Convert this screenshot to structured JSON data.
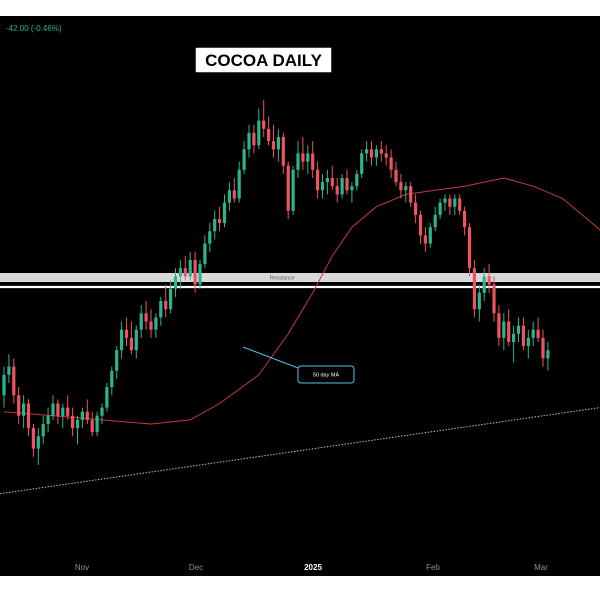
{
  "header": {
    "price_change": "-42.00 (-0.46%)"
  },
  "title": "COCOA DAILY",
  "annotations": {
    "resistance": "Resistance",
    "ma_label": "50 day MA"
  },
  "colors": {
    "up": "#2bb58a",
    "down": "#ef5360",
    "ma": "#c23a40",
    "resistance": "#d9d9d9",
    "trend": "#bfbfbf",
    "callout": "#56c3df",
    "background": "#000000"
  },
  "chart_data": {
    "type": "candlestick",
    "title": "COCOA DAILY",
    "x_ticks": [
      "Nov",
      "Dec",
      "2025",
      "Feb",
      "Mar"
    ],
    "y_axis": {
      "visible": false,
      "range": [
        0,
        100
      ],
      "units": "relative"
    },
    "grid": false,
    "moving_average": {
      "name": "50 day MA",
      "points": [
        [
          0,
          23
        ],
        [
          10,
          22
        ],
        [
          20,
          21
        ],
        [
          30,
          20
        ],
        [
          38,
          21
        ],
        [
          44,
          25
        ],
        [
          52,
          32
        ],
        [
          58,
          42
        ],
        [
          63,
          52
        ],
        [
          67,
          61
        ],
        [
          71,
          68
        ],
        [
          76,
          73
        ],
        [
          82,
          76
        ],
        [
          88,
          77
        ],
        [
          94,
          78
        ],
        [
          98,
          79
        ],
        [
          102,
          80
        ],
        [
          108,
          78
        ],
        [
          114,
          75
        ],
        [
          118,
          71
        ],
        [
          122,
          67
        ]
      ]
    },
    "resistance_level": 60,
    "trendline": {
      "start": [
        0,
        3
      ],
      "end": [
        122,
        24
      ]
    },
    "candles": [
      {
        "o": 27,
        "h": 34,
        "l": 24,
        "c": 32
      },
      {
        "o": 32,
        "h": 37,
        "l": 30,
        "c": 34
      },
      {
        "o": 34,
        "h": 36,
        "l": 25,
        "c": 27
      },
      {
        "o": 27,
        "h": 29,
        "l": 20,
        "c": 22
      },
      {
        "o": 22,
        "h": 27,
        "l": 19,
        "c": 25
      },
      {
        "o": 25,
        "h": 26,
        "l": 17,
        "c": 19
      },
      {
        "o": 19,
        "h": 20,
        "l": 12,
        "c": 14
      },
      {
        "o": 14,
        "h": 19,
        "l": 10,
        "c": 17
      },
      {
        "o": 17,
        "h": 22,
        "l": 15,
        "c": 20
      },
      {
        "o": 20,
        "h": 24,
        "l": 18,
        "c": 22
      },
      {
        "o": 22,
        "h": 27,
        "l": 21,
        "c": 25
      },
      {
        "o": 25,
        "h": 26,
        "l": 20,
        "c": 22
      },
      {
        "o": 22,
        "h": 25,
        "l": 19,
        "c": 24
      },
      {
        "o": 24,
        "h": 27,
        "l": 21,
        "c": 22
      },
      {
        "o": 22,
        "h": 24,
        "l": 17,
        "c": 19
      },
      {
        "o": 19,
        "h": 22,
        "l": 15,
        "c": 21
      },
      {
        "o": 21,
        "h": 24,
        "l": 19,
        "c": 23
      },
      {
        "o": 23,
        "h": 26,
        "l": 20,
        "c": 21
      },
      {
        "o": 21,
        "h": 23,
        "l": 17,
        "c": 18
      },
      {
        "o": 18,
        "h": 23,
        "l": 17,
        "c": 22
      },
      {
        "o": 22,
        "h": 25,
        "l": 20,
        "c": 24
      },
      {
        "o": 24,
        "h": 30,
        "l": 23,
        "c": 29
      },
      {
        "o": 29,
        "h": 34,
        "l": 27,
        "c": 33
      },
      {
        "o": 33,
        "h": 39,
        "l": 31,
        "c": 38
      },
      {
        "o": 38,
        "h": 45,
        "l": 36,
        "c": 43
      },
      {
        "o": 43,
        "h": 46,
        "l": 39,
        "c": 41
      },
      {
        "o": 41,
        "h": 45,
        "l": 37,
        "c": 38
      },
      {
        "o": 38,
        "h": 44,
        "l": 36,
        "c": 43
      },
      {
        "o": 43,
        "h": 49,
        "l": 41,
        "c": 47
      },
      {
        "o": 47,
        "h": 50,
        "l": 43,
        "c": 45
      },
      {
        "o": 45,
        "h": 48,
        "l": 41,
        "c": 43
      },
      {
        "o": 43,
        "h": 47,
        "l": 41,
        "c": 46
      },
      {
        "o": 46,
        "h": 51,
        "l": 44,
        "c": 50
      },
      {
        "o": 50,
        "h": 54,
        "l": 46,
        "c": 48
      },
      {
        "o": 48,
        "h": 55,
        "l": 47,
        "c": 53
      },
      {
        "o": 53,
        "h": 58,
        "l": 51,
        "c": 56
      },
      {
        "o": 56,
        "h": 60,
        "l": 53,
        "c": 58
      },
      {
        "o": 58,
        "h": 61,
        "l": 55,
        "c": 56
      },
      {
        "o": 56,
        "h": 62,
        "l": 55,
        "c": 60
      },
      {
        "o": 60,
        "h": 62,
        "l": 52,
        "c": 54
      },
      {
        "o": 54,
        "h": 60,
        "l": 53,
        "c": 59
      },
      {
        "o": 59,
        "h": 66,
        "l": 58,
        "c": 64
      },
      {
        "o": 64,
        "h": 69,
        "l": 62,
        "c": 67
      },
      {
        "o": 67,
        "h": 72,
        "l": 65,
        "c": 70
      },
      {
        "o": 70,
        "h": 73,
        "l": 67,
        "c": 69
      },
      {
        "o": 69,
        "h": 76,
        "l": 68,
        "c": 74
      },
      {
        "o": 74,
        "h": 79,
        "l": 72,
        "c": 77
      },
      {
        "o": 77,
        "h": 80,
        "l": 74,
        "c": 75
      },
      {
        "o": 75,
        "h": 84,
        "l": 74,
        "c": 82
      },
      {
        "o": 82,
        "h": 89,
        "l": 81,
        "c": 87
      },
      {
        "o": 87,
        "h": 93,
        "l": 85,
        "c": 91
      },
      {
        "o": 91,
        "h": 93,
        "l": 86,
        "c": 88
      },
      {
        "o": 88,
        "h": 97,
        "l": 87,
        "c": 94
      },
      {
        "o": 94,
        "h": 99,
        "l": 90,
        "c": 92
      },
      {
        "o": 92,
        "h": 95,
        "l": 88,
        "c": 89
      },
      {
        "o": 89,
        "h": 93,
        "l": 85,
        "c": 87
      },
      {
        "o": 87,
        "h": 92,
        "l": 84,
        "c": 90
      },
      {
        "o": 90,
        "h": 91,
        "l": 81,
        "c": 83
      },
      {
        "o": 83,
        "h": 84,
        "l": 70,
        "c": 72
      },
      {
        "o": 72,
        "h": 83,
        "l": 71,
        "c": 82
      },
      {
        "o": 82,
        "h": 89,
        "l": 80,
        "c": 86
      },
      {
        "o": 86,
        "h": 90,
        "l": 82,
        "c": 84
      },
      {
        "o": 84,
        "h": 88,
        "l": 81,
        "c": 86
      },
      {
        "o": 86,
        "h": 89,
        "l": 80,
        "c": 82
      },
      {
        "o": 82,
        "h": 84,
        "l": 75,
        "c": 77
      },
      {
        "o": 77,
        "h": 81,
        "l": 75,
        "c": 79
      },
      {
        "o": 79,
        "h": 82,
        "l": 76,
        "c": 80
      },
      {
        "o": 80,
        "h": 83,
        "l": 77,
        "c": 78
      },
      {
        "o": 78,
        "h": 80,
        "l": 74,
        "c": 76
      },
      {
        "o": 76,
        "h": 81,
        "l": 75,
        "c": 80
      },
      {
        "o": 80,
        "h": 82,
        "l": 76,
        "c": 77
      },
      {
        "o": 77,
        "h": 79,
        "l": 74,
        "c": 78
      },
      {
        "o": 78,
        "h": 82,
        "l": 77,
        "c": 81
      },
      {
        "o": 81,
        "h": 87,
        "l": 80,
        "c": 86
      },
      {
        "o": 86,
        "h": 89,
        "l": 84,
        "c": 87
      },
      {
        "o": 87,
        "h": 89,
        "l": 83,
        "c": 85
      },
      {
        "o": 85,
        "h": 88,
        "l": 83,
        "c": 87
      },
      {
        "o": 87,
        "h": 89,
        "l": 84,
        "c": 86
      },
      {
        "o": 86,
        "h": 88,
        "l": 83,
        "c": 85
      },
      {
        "o": 85,
        "h": 87,
        "l": 80,
        "c": 82
      },
      {
        "o": 82,
        "h": 84,
        "l": 78,
        "c": 79
      },
      {
        "o": 79,
        "h": 81,
        "l": 75,
        "c": 77
      },
      {
        "o": 77,
        "h": 79,
        "l": 74,
        "c": 78
      },
      {
        "o": 78,
        "h": 79,
        "l": 73,
        "c": 74
      },
      {
        "o": 74,
        "h": 76,
        "l": 69,
        "c": 71
      },
      {
        "o": 71,
        "h": 72,
        "l": 64,
        "c": 66
      },
      {
        "o": 66,
        "h": 68,
        "l": 62,
        "c": 64
      },
      {
        "o": 64,
        "h": 69,
        "l": 63,
        "c": 68
      },
      {
        "o": 68,
        "h": 73,
        "l": 67,
        "c": 71
      },
      {
        "o": 71,
        "h": 75,
        "l": 70,
        "c": 74
      },
      {
        "o": 74,
        "h": 76,
        "l": 72,
        "c": 75
      },
      {
        "o": 75,
        "h": 76,
        "l": 71,
        "c": 73
      },
      {
        "o": 73,
        "h": 76,
        "l": 71,
        "c": 75
      },
      {
        "o": 75,
        "h": 76,
        "l": 71,
        "c": 72
      },
      {
        "o": 72,
        "h": 73,
        "l": 66,
        "c": 68
      },
      {
        "o": 68,
        "h": 69,
        "l": 56,
        "c": 58
      },
      {
        "o": 58,
        "h": 60,
        "l": 46,
        "c": 48
      },
      {
        "o": 48,
        "h": 54,
        "l": 45,
        "c": 52
      },
      {
        "o": 52,
        "h": 58,
        "l": 50,
        "c": 56
      },
      {
        "o": 56,
        "h": 59,
        "l": 52,
        "c": 54
      },
      {
        "o": 54,
        "h": 56,
        "l": 45,
        "c": 47
      },
      {
        "o": 47,
        "h": 49,
        "l": 39,
        "c": 41
      },
      {
        "o": 41,
        "h": 47,
        "l": 38,
        "c": 45
      },
      {
        "o": 45,
        "h": 48,
        "l": 39,
        "c": 40
      },
      {
        "o": 40,
        "h": 44,
        "l": 35,
        "c": 42
      },
      {
        "o": 42,
        "h": 46,
        "l": 40,
        "c": 44
      },
      {
        "o": 44,
        "h": 46,
        "l": 38,
        "c": 39
      },
      {
        "o": 39,
        "h": 43,
        "l": 36,
        "c": 41
      },
      {
        "o": 41,
        "h": 45,
        "l": 39,
        "c": 43
      },
      {
        "o": 43,
        "h": 46,
        "l": 40,
        "c": 41
      },
      {
        "o": 41,
        "h": 43,
        "l": 34,
        "c": 36
      },
      {
        "o": 36,
        "h": 40,
        "l": 33,
        "c": 38
      }
    ]
  }
}
